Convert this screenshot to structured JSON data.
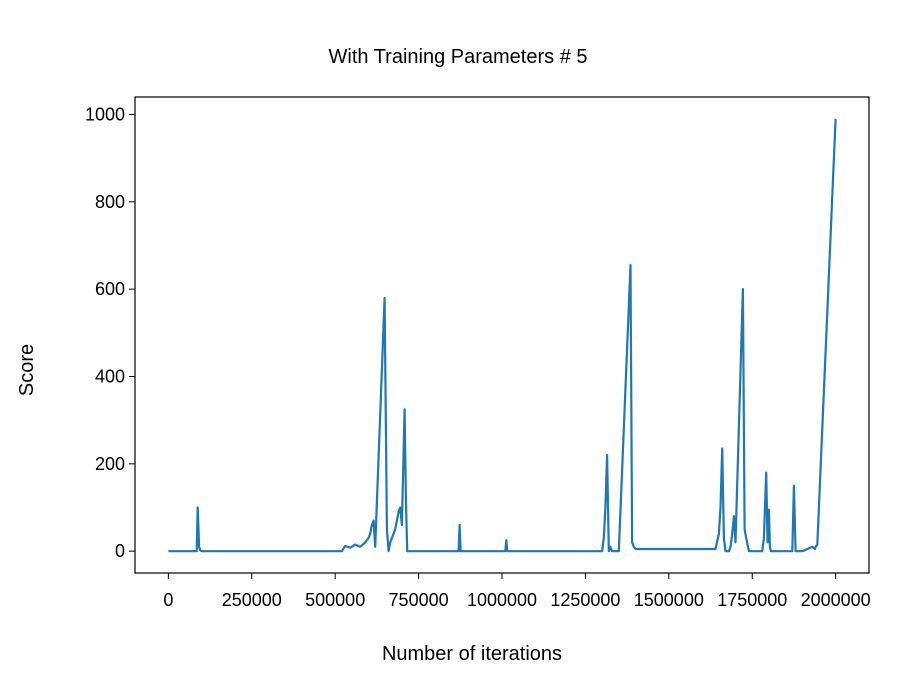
{
  "chart_data": {
    "type": "line",
    "title": "With Training Parameters # 5",
    "xlabel": "Number of iterations",
    "ylabel": "Score",
    "xlim": [
      -100000,
      2100000
    ],
    "ylim": [
      -50,
      1040
    ],
    "xticks": [
      0,
      250000,
      500000,
      750000,
      1000000,
      1250000,
      1500000,
      1750000,
      2000000
    ],
    "xtick_labels": [
      "0",
      "250000",
      "500000",
      "750000",
      "1000000",
      "1250000",
      "1500000",
      "1750000",
      "2000000"
    ],
    "yticks": [
      0,
      200,
      400,
      600,
      800,
      1000
    ],
    "ytick_labels": [
      "0",
      "200",
      "400",
      "600",
      "800",
      "1000"
    ],
    "grid": false,
    "color": "#1f77b4",
    "series": [
      {
        "x": [
          0,
          85000,
          88000,
          92000,
          95000,
          100000,
          300000,
          520000,
          530000,
          545000,
          560000,
          575000,
          590000,
          600000,
          605000,
          610000,
          615000,
          620000,
          648000,
          655000,
          660000,
          665000,
          670000,
          675000,
          680000,
          685000,
          690000,
          695000,
          700000,
          708000,
          712000,
          716000,
          725000,
          735000,
          745000,
          760000,
          800000,
          870000,
          873000,
          876000,
          950000,
          1010000,
          1013000,
          1016000,
          1100000,
          1300000,
          1305000,
          1310000,
          1315000,
          1320000,
          1325000,
          1330000,
          1350000,
          1385000,
          1390000,
          1395000,
          1400000,
          1450000,
          1500000,
          1550000,
          1600000,
          1640000,
          1650000,
          1655000,
          1660000,
          1665000,
          1670000,
          1680000,
          1685000,
          1690000,
          1695000,
          1700000,
          1722000,
          1727000,
          1732000,
          1740000,
          1760000,
          1780000,
          1785000,
          1792000,
          1796000,
          1800000,
          1803000,
          1806000,
          1810000,
          1830000,
          1860000,
          1870000,
          1875000,
          1880000,
          1900000,
          1930000,
          1938000,
          1940000,
          1945000,
          2000000
        ],
        "y": [
          0,
          0,
          100,
          10,
          2,
          0,
          0,
          0,
          12,
          8,
          15,
          10,
          20,
          30,
          40,
          60,
          70,
          10,
          580,
          50,
          0,
          20,
          30,
          40,
          50,
          70,
          90,
          100,
          60,
          325,
          120,
          0,
          0,
          0,
          0,
          0,
          0,
          0,
          60,
          0,
          0,
          0,
          25,
          0,
          0,
          0,
          30,
          100,
          220,
          0,
          10,
          0,
          0,
          655,
          20,
          10,
          5,
          5,
          5,
          5,
          5,
          5,
          40,
          100,
          235,
          30,
          0,
          0,
          10,
          40,
          80,
          20,
          600,
          50,
          30,
          0,
          0,
          0,
          30,
          180,
          20,
          95,
          10,
          0,
          0,
          0,
          0,
          0,
          150,
          0,
          0,
          10,
          5,
          10,
          15,
          990
        ]
      }
    ]
  }
}
